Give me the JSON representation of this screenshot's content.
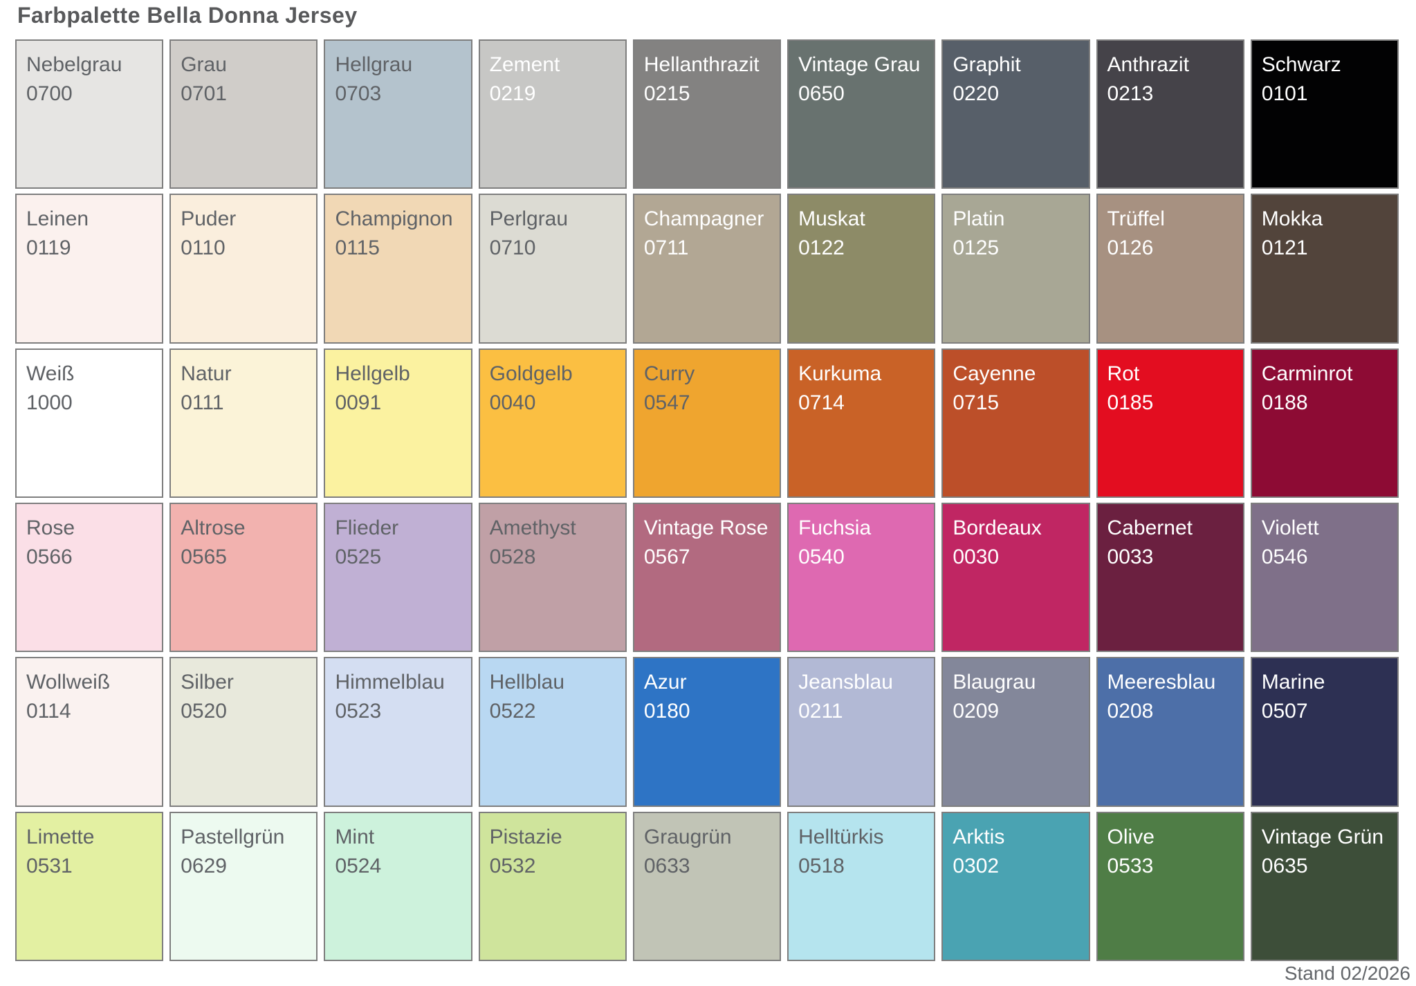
{
  "title": "Farbpalette Bella Donna Jersey",
  "footer": "Stand 02/2026",
  "colors": {
    "title_text": "#58595b",
    "swatch_text_dark": "#5f6266",
    "swatch_text_light": "#ffffff",
    "swatch_border": "#7e7e7e",
    "background": "#ffffff"
  },
  "grid": {
    "columns": 9,
    "rows": 6
  },
  "swatches": [
    {
      "name": "Nebelgrau",
      "code": "0700",
      "hex": "#e6e5e3",
      "text": "dark"
    },
    {
      "name": "Grau",
      "code": "0701",
      "hex": "#d0cdc9",
      "text": "dark"
    },
    {
      "name": "Hellgrau",
      "code": "0703",
      "hex": "#b4c3cd",
      "text": "dark"
    },
    {
      "name": "Zement",
      "code": "0219",
      "hex": "#c7c7c5",
      "text": "light"
    },
    {
      "name": "Hellanthrazit",
      "code": "0215",
      "hex": "#838281",
      "text": "light"
    },
    {
      "name": "Vintage Grau",
      "code": "0650",
      "hex": "#68726f",
      "text": "light"
    },
    {
      "name": "Graphit",
      "code": "0220",
      "hex": "#575f69",
      "text": "light"
    },
    {
      "name": "Anthrazit",
      "code": "0213",
      "hex": "#454349",
      "text": "light"
    },
    {
      "name": "Schwarz",
      "code": "0101",
      "hex": "#020203",
      "text": "light"
    },
    {
      "name": "Leinen",
      "code": "0119",
      "hex": "#fbf1ee",
      "text": "dark"
    },
    {
      "name": "Puder",
      "code": "0110",
      "hex": "#faeedd",
      "text": "dark"
    },
    {
      "name": "Champignon",
      "code": "0115",
      "hex": "#f1d8b5",
      "text": "dark"
    },
    {
      "name": "Perlgrau",
      "code": "0710",
      "hex": "#dcdbd3",
      "text": "dark"
    },
    {
      "name": "Champagner",
      "code": "0711",
      "hex": "#b2a794",
      "text": "light"
    },
    {
      "name": "Muskat",
      "code": "0122",
      "hex": "#8d8b67",
      "text": "light"
    },
    {
      "name": "Platin",
      "code": "0125",
      "hex": "#a8a795",
      "text": "light"
    },
    {
      "name": "Trüffel",
      "code": "0126",
      "hex": "#a79181",
      "text": "light"
    },
    {
      "name": "Mokka",
      "code": "0121",
      "hex": "#52443b",
      "text": "light"
    },
    {
      "name": "Weiß",
      "code": "1000",
      "hex": "#ffffff",
      "text": "dark"
    },
    {
      "name": "Natur",
      "code": "0111",
      "hex": "#fbf3d8",
      "text": "dark"
    },
    {
      "name": "Hellgelb",
      "code": "0091",
      "hex": "#fbf2a0",
      "text": "dark"
    },
    {
      "name": "Goldgelb",
      "code": "0040",
      "hex": "#fbbf42",
      "text": "dark"
    },
    {
      "name": "Curry",
      "code": "0547",
      "hex": "#efa52f",
      "text": "dark"
    },
    {
      "name": "Kurkuma",
      "code": "0714",
      "hex": "#c96227",
      "text": "light"
    },
    {
      "name": "Cayenne",
      "code": "0715",
      "hex": "#bc4f29",
      "text": "light"
    },
    {
      "name": "Rot",
      "code": "0185",
      "hex": "#e30d20",
      "text": "light"
    },
    {
      "name": "Carminrot",
      "code": "0188",
      "hex": "#8d0b34",
      "text": "light"
    },
    {
      "name": "Rose",
      "code": "0566",
      "hex": "#fbdfe7",
      "text": "dark"
    },
    {
      "name": "Altrose",
      "code": "0565",
      "hex": "#f2b2af",
      "text": "dark"
    },
    {
      "name": "Flieder",
      "code": "0525",
      "hex": "#c0b0d4",
      "text": "dark"
    },
    {
      "name": "Amethyst",
      "code": "0528",
      "hex": "#c0a0a6",
      "text": "dark"
    },
    {
      "name": "Vintage Rose",
      "code": "0567",
      "hex": "#b26a80",
      "text": "light"
    },
    {
      "name": "Fuchsia",
      "code": "0540",
      "hex": "#de69b1",
      "text": "light"
    },
    {
      "name": "Bordeaux",
      "code": "0030",
      "hex": "#c02663",
      "text": "light"
    },
    {
      "name": "Cabernet",
      "code": "0033",
      "hex": "#6b2040",
      "text": "light"
    },
    {
      "name": "Violett",
      "code": "0546",
      "hex": "#7f7089",
      "text": "light"
    },
    {
      "name": "Wollweiß",
      "code": "0114",
      "hex": "#faf2f0",
      "text": "dark"
    },
    {
      "name": "Silber",
      "code": "0520",
      "hex": "#e8e9dc",
      "text": "dark"
    },
    {
      "name": "Himmelblau",
      "code": "0523",
      "hex": "#d4def2",
      "text": "dark"
    },
    {
      "name": "Hellblau",
      "code": "0522",
      "hex": "#b9d8f2",
      "text": "dark"
    },
    {
      "name": "Azur",
      "code": "0180",
      "hex": "#2e74c5",
      "text": "light"
    },
    {
      "name": "Jeansblau",
      "code": "0211",
      "hex": "#b2b9d5",
      "text": "light"
    },
    {
      "name": "Blaugrau",
      "code": "0209",
      "hex": "#83879a",
      "text": "light"
    },
    {
      "name": "Meeresblau",
      "code": "0208",
      "hex": "#4d6fa8",
      "text": "light"
    },
    {
      "name": "Marine",
      "code": "0507",
      "hex": "#2d3053",
      "text": "light"
    },
    {
      "name": "Limette",
      "code": "0531",
      "hex": "#e3f0a2",
      "text": "dark"
    },
    {
      "name": "Pastellgrün",
      "code": "0629",
      "hex": "#edfaf0",
      "text": "dark"
    },
    {
      "name": "Mint",
      "code": "0524",
      "hex": "#cdf2dc",
      "text": "dark"
    },
    {
      "name": "Pistazie",
      "code": "0532",
      "hex": "#cfe49c",
      "text": "dark"
    },
    {
      "name": "Graugrün",
      "code": "0633",
      "hex": "#c1c4b6",
      "text": "dark"
    },
    {
      "name": "Helltürkis",
      "code": "0518",
      "hex": "#b5e4ee",
      "text": "dark"
    },
    {
      "name": "Arktis",
      "code": "0302",
      "hex": "#4aa3b2",
      "text": "light"
    },
    {
      "name": "Olive",
      "code": "0533",
      "hex": "#4f7d46",
      "text": "light"
    },
    {
      "name": "Vintage Grün",
      "code": "0635",
      "hex": "#3d4e39",
      "text": "light"
    }
  ]
}
